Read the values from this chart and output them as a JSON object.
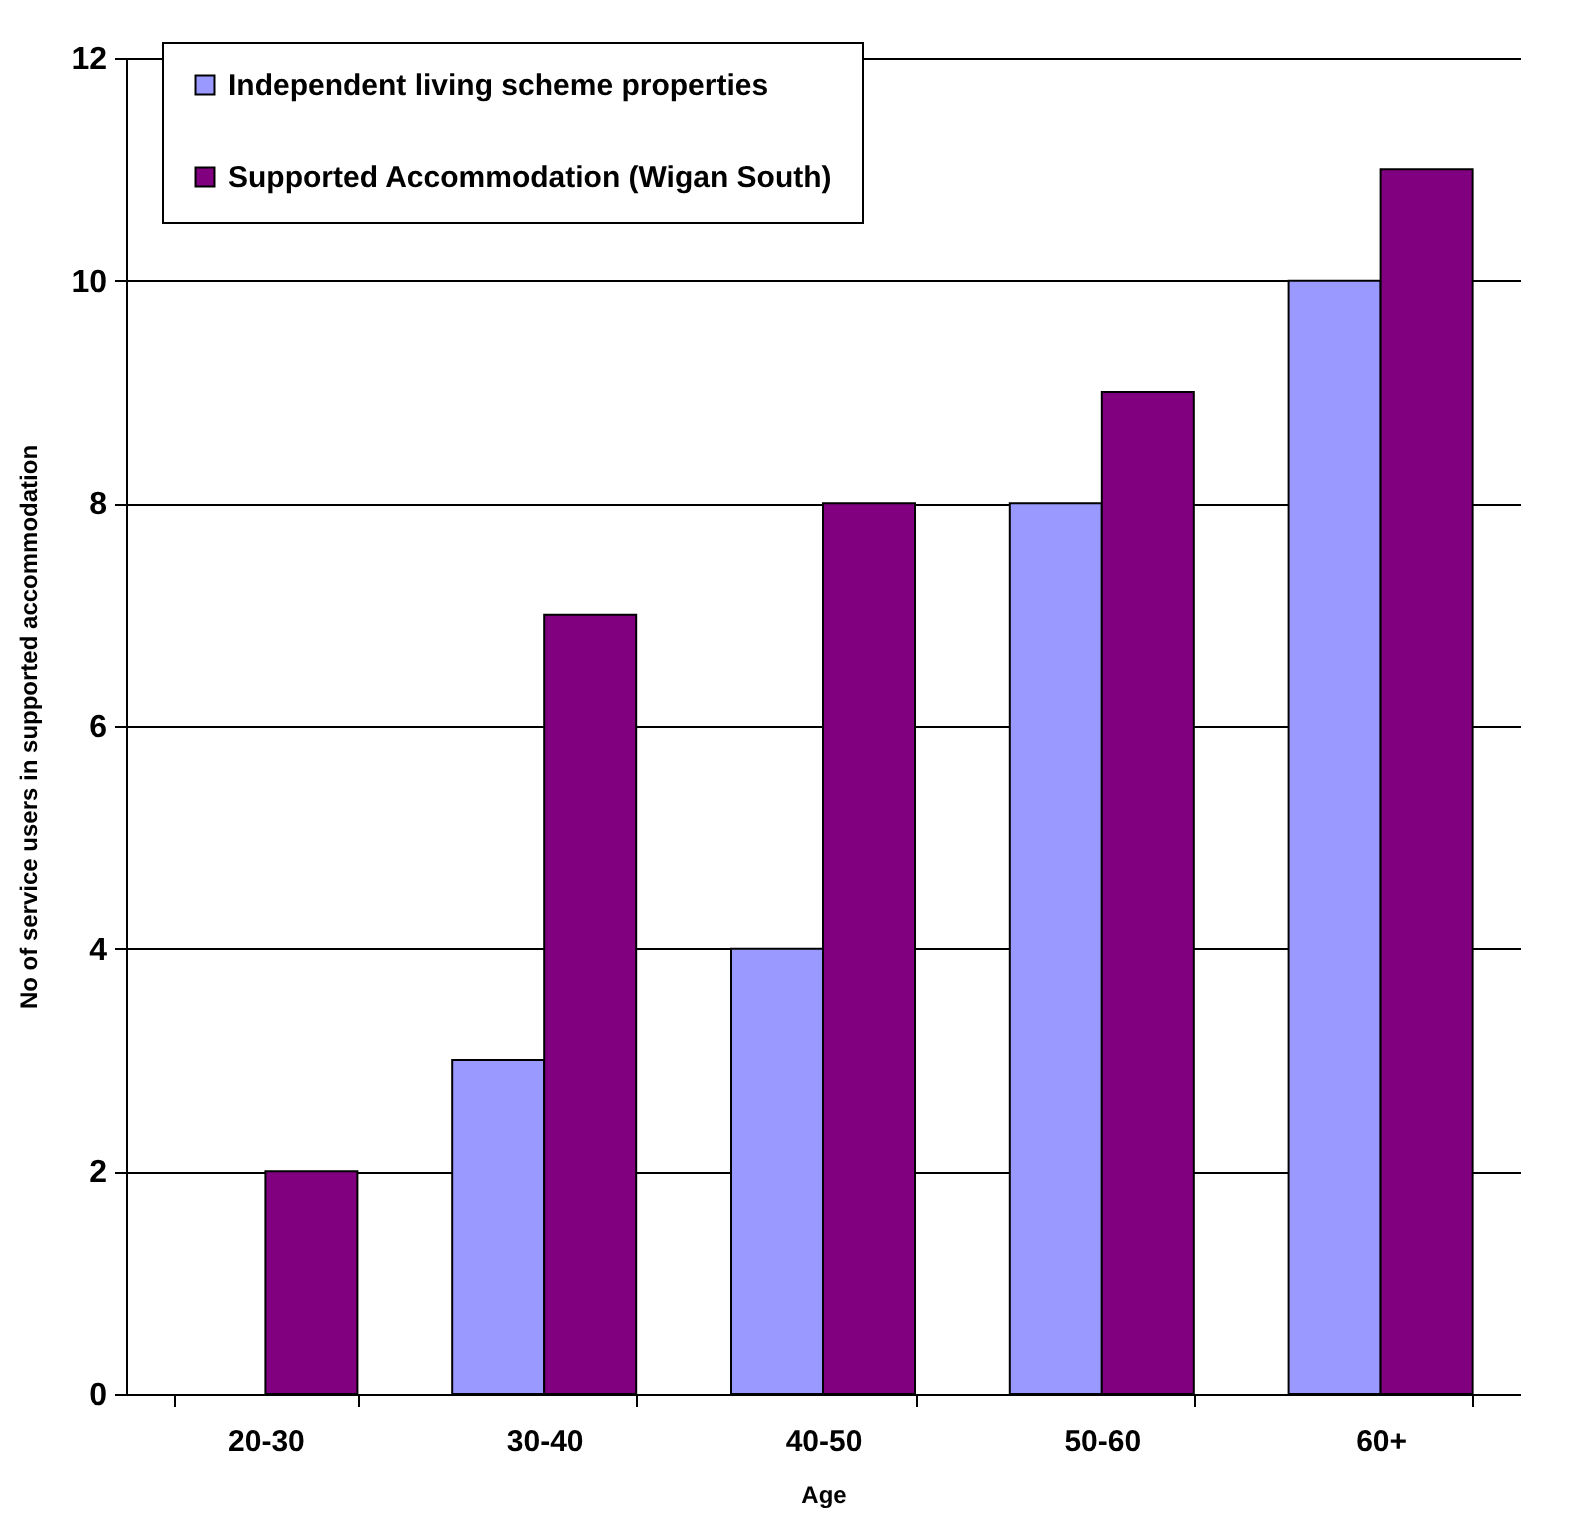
{
  "chart_data": {
    "type": "bar",
    "xlabel": "Age",
    "ylabel": "No of service users in supported accommodation",
    "categories": [
      "20-30",
      "30-40",
      "40-50",
      "50-60",
      "60+"
    ],
    "series": [
      {
        "name": "Independent living scheme properties",
        "color": "#9999ff",
        "values": [
          null,
          3,
          4,
          8,
          10
        ]
      },
      {
        "name": "Supported Accommodation (Wigan South)",
        "color": "#800080",
        "values": [
          2,
          7,
          8,
          9,
          11
        ]
      }
    ],
    "ylim": [
      0,
      12
    ],
    "yticks": [
      0,
      2,
      4,
      6,
      8,
      10,
      12
    ],
    "grid": "y",
    "legend": "top left"
  }
}
